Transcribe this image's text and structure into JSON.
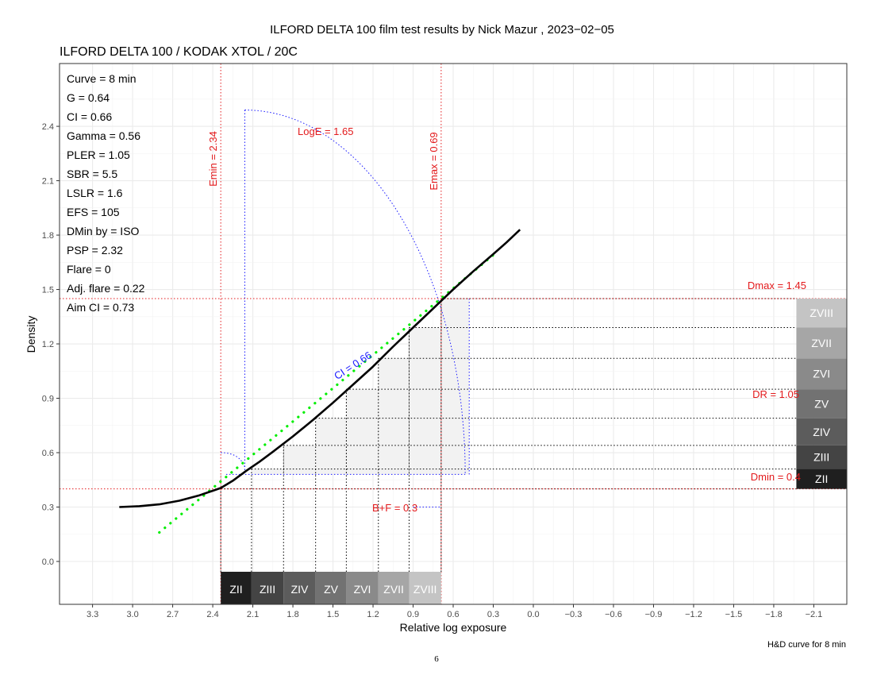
{
  "chart_data": {
    "type": "line",
    "title": "ILFORD DELTA 100 film test results by Nick Mazur , 2023−02−05",
    "subtitle": "ILFORD DELTA 100 / KODAK XTOL / 20C",
    "xlabel": "Relative log exposure",
    "ylabel": "Density",
    "caption": "H&D curve for 8 min",
    "xlim": [
      3.6,
      -2.4
    ],
    "ylim": [
      -0.22,
      2.7
    ],
    "x_axis_reversed": true,
    "grid": true,
    "x_ticks": [
      3.3,
      3.0,
      2.7,
      2.4,
      2.1,
      1.8,
      1.5,
      1.2,
      0.9,
      0.6,
      0.3,
      0.0,
      -0.3,
      -0.6,
      -0.9,
      -1.2,
      -1.5,
      -1.8,
      -2.1
    ],
    "x_tick_labels": [
      "3.3",
      "3.0",
      "2.7",
      "2.4",
      "2.1",
      "1.8",
      "1.5",
      "1.2",
      "0.9",
      "0.6",
      "0.3",
      "0.0",
      "−0.3",
      "−0.6",
      "−0.9",
      "−1.2",
      "−1.5",
      "−1.8",
      "−2.1"
    ],
    "y_ticks": [
      0.0,
      0.3,
      0.6,
      0.9,
      1.2,
      1.5,
      1.8,
      2.1,
      2.4
    ],
    "y_tick_labels": [
      "0.0",
      "0.3",
      "0.6",
      "0.9",
      "1.2",
      "1.5",
      "1.8",
      "2.1",
      "2.4"
    ],
    "curve": {
      "x": [
        3.1,
        2.95,
        2.8,
        2.65,
        2.5,
        2.4,
        2.34,
        2.25,
        2.15,
        2.05,
        1.95,
        1.8,
        1.65,
        1.5,
        1.35,
        1.2,
        1.05,
        0.9,
        0.75,
        0.6,
        0.45,
        0.3,
        0.2,
        0.1
      ],
      "y": [
        0.3,
        0.305,
        0.315,
        0.335,
        0.365,
        0.39,
        0.405,
        0.445,
        0.5,
        0.55,
        0.605,
        0.69,
        0.78,
        0.875,
        0.975,
        1.075,
        1.185,
        1.29,
        1.395,
        1.5,
        1.6,
        1.695,
        1.76,
        1.83
      ]
    },
    "ci_line": {
      "label": "CI = 0.66",
      "x": [
        2.8,
        0.3
      ],
      "y": [
        0.16,
        1.69
      ]
    },
    "zones_x": [
      2.34,
      2.11,
      1.87,
      1.63,
      1.4,
      1.16,
      0.93,
      0.69
    ],
    "zones_y": [
      0.4,
      0.51,
      0.64,
      0.79,
      0.95,
      1.12,
      1.29,
      1.45
    ],
    "zone_labels": [
      "ZII",
      "ZIII",
      "ZIV",
      "ZV",
      "ZVI",
      "ZVII",
      "ZVIII"
    ],
    "zone_colors": [
      "#1f1f1f",
      "#444444",
      "#5c5c5c",
      "#727272",
      "#8a8a8a",
      "#a6a6a6",
      "#c4c4c4"
    ],
    "markers": {
      "emin": {
        "x": 2.34,
        "label": "Emin = 2.34"
      },
      "emax": {
        "x": 0.69,
        "label": "Emax = 0.69"
      },
      "dmin": {
        "y": 0.4,
        "label": "Dmin = 0.4"
      },
      "dmax": {
        "y": 1.45,
        "label": "Dmax = 1.45"
      },
      "dr_label": "DR = 1.05",
      "logE_label": "LogE = 1.65",
      "bf_label": "B+F = 0.3",
      "bf_y": 0.3
    },
    "psp_quadrant": {
      "x0": 2.16,
      "y0": 0.48,
      "radius_x": 1.65,
      "top_y": 2.49,
      "inner_x": 0.48
    },
    "stats": [
      "Curve =  8 min",
      "G =  0.64",
      "CI =  0.66",
      "Gamma =  0.56",
      "PLER =  1.05",
      "SBR =  5.5",
      "LSLR =  1.6",
      "EFS = 105",
      "DMin by = ISO",
      "PSP = 2.32",
      "Flare = 0",
      "Adj. flare = 0.22",
      "Aim CI =  0.73"
    ],
    "colors": {
      "curve": "#000000",
      "ci_line": "#00ee00",
      "markers": "#e31a1c",
      "annotation_blue": "#1a1aff",
      "shade": "#f2f2f2",
      "grid": "#ebebeb"
    }
  },
  "page_number": "6"
}
